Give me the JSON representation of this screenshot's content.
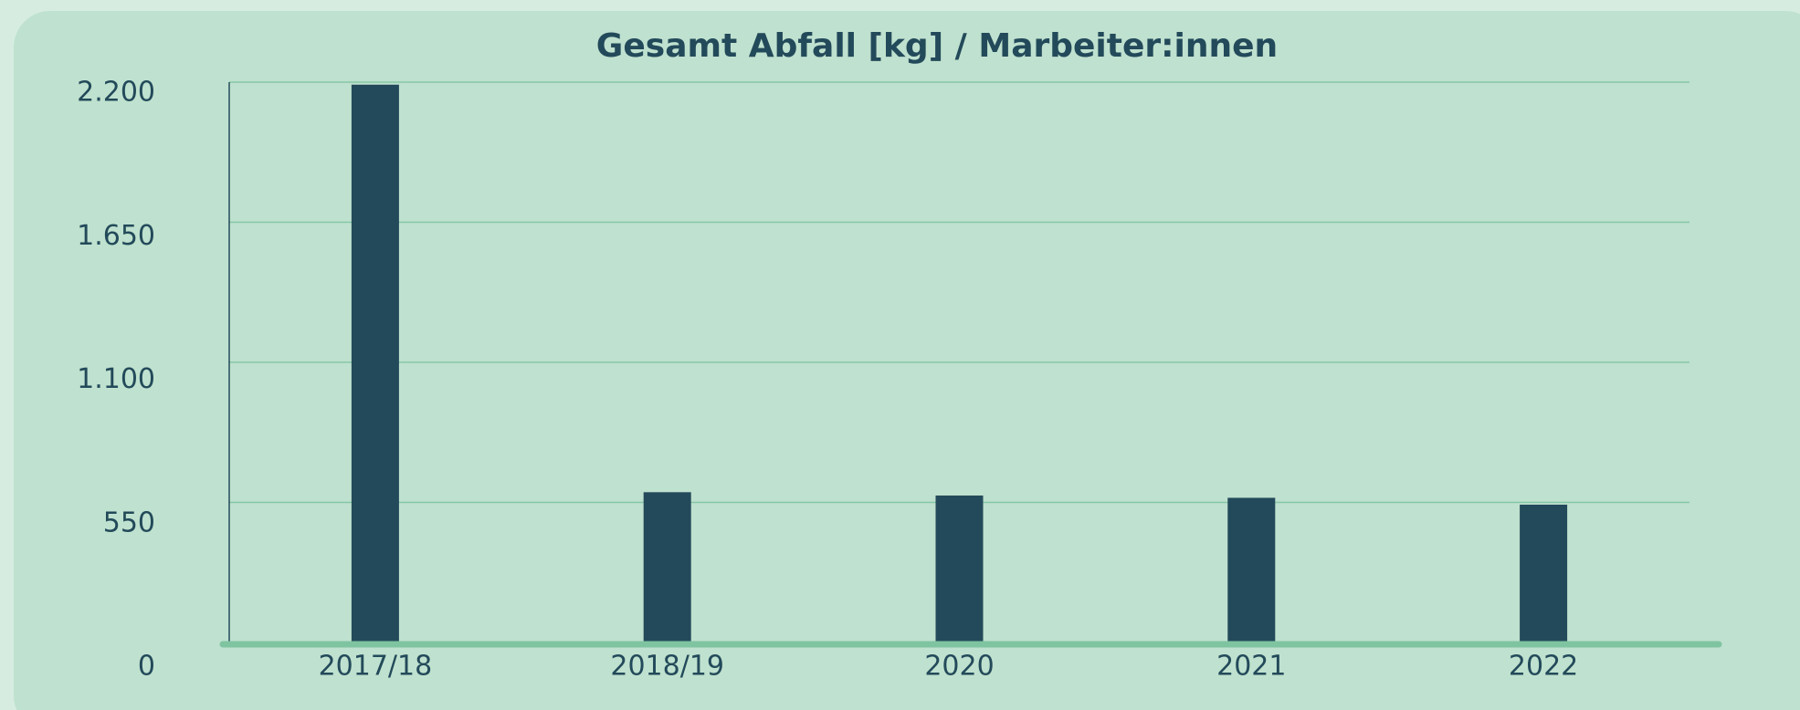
{
  "chart_data": {
    "type": "bar",
    "title": "Gesamt Abfall [kg] / Marbeiter:innen",
    "categories": [
      "2017/18",
      "2018/19",
      "2020",
      "2021",
      "2022"
    ],
    "values": [
      2190,
      590,
      577,
      568,
      541
    ],
    "color": "#234a5a",
    "ylim": [
      0,
      2200
    ],
    "yticks": [
      0,
      550,
      {
        "value": 1100,
        "label": "1.100"
      },
      {
        "value": 1650,
        "label": "1.650"
      },
      {
        "value": 2200,
        "label": "2.200"
      }
    ],
    "grid": true
  }
}
